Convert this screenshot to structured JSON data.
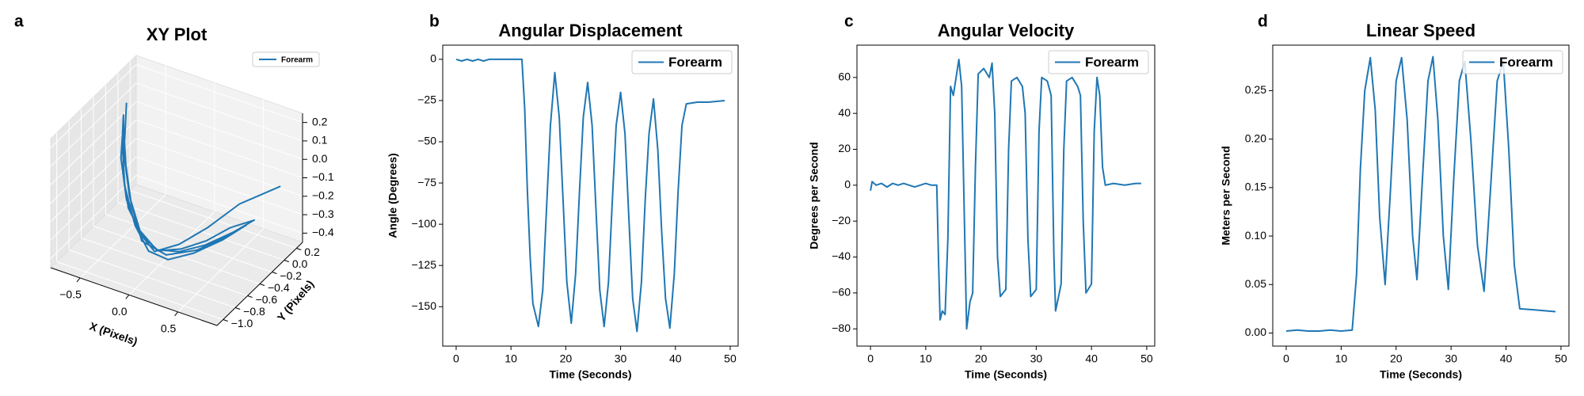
{
  "chart_data": [
    {
      "type": "line3d",
      "panel_label": "a",
      "title": "XY Plot",
      "xlabel": "X (Pixels)",
      "ylabel": "Y (Pixels)",
      "legend": "upper right",
      "xlim": [
        -0.8,
        0.9
      ],
      "ylim": [
        -1.1,
        0.3
      ],
      "zlim": [
        -0.45,
        0.25
      ],
      "xticks": [
        {
          "value": -0.5,
          "label": "−0.5"
        },
        {
          "value": 0,
          "label": "0.0"
        },
        {
          "value": 0.5,
          "label": "0.5"
        }
      ],
      "yticks": [
        {
          "value": 0.2,
          "label": "0.2"
        },
        {
          "value": 0,
          "label": "0.0"
        },
        {
          "value": -0.2,
          "label": "−0.2"
        },
        {
          "value": -0.4,
          "label": "−0.4"
        },
        {
          "value": -0.6,
          "label": "−0.6"
        },
        {
          "value": -0.8,
          "label": "−0.8"
        },
        {
          "value": -1.0,
          "label": "−1.0"
        }
      ],
      "zticks": [
        {
          "value": 0.2,
          "label": "0.2"
        },
        {
          "value": 0.1,
          "label": "0.1"
        },
        {
          "value": 0,
          "label": "0.0"
        },
        {
          "value": -0.1,
          "label": "−0.1"
        },
        {
          "value": -0.2,
          "label": "−0.2"
        },
        {
          "value": -0.3,
          "label": "−0.3"
        },
        {
          "value": -0.4,
          "label": "−0.4"
        }
      ],
      "series": [
        {
          "name": "Forearm",
          "color": "#1f77b4",
          "x": [
            -0.65,
            -0.6,
            -0.5,
            -0.35,
            -0.15,
            0.05,
            0.25,
            0.45,
            0.6,
            0.75,
            0.6,
            0.4,
            0.2,
            0.0,
            -0.2,
            -0.4,
            -0.55,
            -0.65,
            -0.6,
            -0.45,
            -0.25,
            -0.05,
            0.15,
            0.35,
            0.55,
            0.7,
            0.55,
            0.35,
            0.1,
            -0.15,
            -0.35,
            -0.5,
            -0.62,
            -0.55,
            -0.4,
            -0.2,
            0.0,
            0.2,
            0.4,
            0.6,
            0.8
          ],
          "y": [
            -0.1,
            -0.2,
            -0.4,
            -0.55,
            -0.65,
            -0.7,
            -0.65,
            -0.55,
            -0.4,
            -0.25,
            -0.35,
            -0.5,
            -0.6,
            -0.65,
            -0.6,
            -0.45,
            -0.3,
            -0.15,
            -0.25,
            -0.45,
            -0.6,
            -0.7,
            -0.7,
            -0.6,
            -0.45,
            -0.3,
            -0.4,
            -0.55,
            -0.65,
            -0.65,
            -0.5,
            -0.35,
            -0.2,
            -0.35,
            -0.5,
            -0.62,
            -0.68,
            -0.6,
            -0.45,
            -0.25,
            0.1
          ],
          "z": [
            0.15,
            0.05,
            -0.1,
            -0.22,
            -0.3,
            -0.33,
            -0.3,
            -0.25,
            -0.2,
            -0.18,
            -0.24,
            -0.3,
            -0.34,
            -0.35,
            -0.3,
            -0.2,
            -0.05,
            0.1,
            0.0,
            -0.15,
            -0.28,
            -0.35,
            -0.36,
            -0.32,
            -0.26,
            -0.2,
            -0.26,
            -0.32,
            -0.36,
            -0.33,
            -0.22,
            -0.08,
            0.08,
            -0.05,
            -0.2,
            -0.3,
            -0.35,
            -0.3,
            -0.22,
            -0.12,
            -0.1
          ]
        }
      ]
    },
    {
      "type": "line",
      "panel_label": "b",
      "title": "Angular Displacement",
      "xlabel": "Time (Seconds)",
      "ylabel": "Angle (Degrees)",
      "legend": "upper right",
      "xlim": [
        -2.45,
        51.45
      ],
      "ylim": [
        -173.9,
        8.6
      ],
      "xticks": [
        0,
        10,
        20,
        30,
        40,
        50
      ],
      "yticks": [
        0,
        {
          "value": -25,
          "label": "−25"
        },
        {
          "value": -50,
          "label": "−50"
        },
        {
          "value": -75,
          "label": "−75"
        },
        {
          "value": -100,
          "label": "−100"
        },
        {
          "value": -125,
          "label": "−125"
        },
        {
          "value": -150,
          "label": "−150"
        }
      ],
      "x": [
        0,
        1,
        2,
        3,
        4,
        5,
        6,
        7,
        8,
        9,
        10,
        11,
        12,
        12.5,
        13,
        13.5,
        14,
        15,
        15.8,
        16.5,
        17.2,
        18,
        18.8,
        19.5,
        20.2,
        21,
        21.8,
        22.5,
        23.2,
        24,
        24.8,
        25.5,
        26.2,
        27,
        27.8,
        28.5,
        29.2,
        30,
        30.8,
        31.5,
        32.2,
        33,
        33.8,
        34.5,
        35.2,
        36,
        36.8,
        37.5,
        38.2,
        39,
        39.8,
        40.5,
        41.2,
        42,
        44,
        46,
        49
      ],
      "series": [
        {
          "name": "Forearm",
          "color": "#1f77b4",
          "values": [
            0,
            -1,
            0,
            -1,
            0,
            -1,
            0,
            0,
            0,
            0,
            0,
            0,
            0,
            -30,
            -80,
            -120,
            -148,
            -162,
            -140,
            -90,
            -40,
            -8,
            -35,
            -85,
            -135,
            -160,
            -130,
            -80,
            -35,
            -14,
            -40,
            -90,
            -140,
            -162,
            -135,
            -85,
            -40,
            -20,
            -45,
            -95,
            -145,
            -165,
            -135,
            -85,
            -45,
            -24,
            -55,
            -105,
            -145,
            -163,
            -130,
            -80,
            -40,
            -27,
            -26,
            -26,
            -25
          ]
        }
      ]
    },
    {
      "type": "line",
      "panel_label": "c",
      "title": "Angular Velocity",
      "xlabel": "Time (Seconds)",
      "ylabel": "Degrees per Second",
      "legend": "upper right",
      "xlim": [
        -2.45,
        51.45
      ],
      "ylim": [
        -89.6,
        78
      ],
      "xticks": [
        0,
        10,
        20,
        30,
        40,
        50
      ],
      "yticks": [
        {
          "value": -80,
          "label": "−80"
        },
        {
          "value": -60,
          "label": "−60"
        },
        {
          "value": -40,
          "label": "−40"
        },
        {
          "value": -20,
          "label": "−20"
        },
        0,
        20,
        40,
        60
      ],
      "x": [
        0,
        0.3,
        1,
        2,
        3,
        4,
        5,
        6,
        7,
        8,
        9,
        10,
        11,
        12,
        12.3,
        12.6,
        13,
        13.5,
        14,
        14.5,
        15,
        15.5,
        16,
        16.5,
        17,
        17.4,
        18,
        18.5,
        19,
        19.5,
        20.5,
        21.5,
        22,
        22.5,
        23,
        23.5,
        24.5,
        25,
        25.5,
        26.5,
        27.5,
        28,
        28.5,
        29,
        30,
        30.5,
        31,
        32,
        32.7,
        33.2,
        33.5,
        34.5,
        35,
        35.5,
        36.5,
        37.5,
        38,
        38.5,
        39,
        40,
        40.5,
        41,
        41.5,
        42,
        42.5,
        44,
        46,
        48,
        49
      ],
      "series": [
        {
          "name": "Forearm",
          "color": "#1f77b4",
          "values": [
            -3,
            2,
            0,
            1,
            -1,
            1,
            0,
            1,
            0,
            -1,
            0,
            1,
            0,
            0,
            -40,
            -75,
            -70,
            -72,
            -30,
            55,
            50,
            60,
            70,
            55,
            -20,
            -80,
            -65,
            -60,
            10,
            62,
            65,
            60,
            68,
            40,
            -40,
            -62,
            -58,
            20,
            58,
            60,
            55,
            40,
            -30,
            -62,
            -58,
            30,
            60,
            58,
            50,
            -40,
            -70,
            -55,
            20,
            58,
            60,
            55,
            50,
            -20,
            -60,
            -55,
            30,
            60,
            50,
            10,
            0,
            1,
            0,
            1,
            1
          ]
        }
      ]
    },
    {
      "type": "line",
      "panel_label": "d",
      "title": "Linear Speed",
      "xlabel": "Time (Seconds)",
      "ylabel": "Meters per Second",
      "legend": "upper right",
      "xlim": [
        -2.45,
        51.45
      ],
      "ylim": [
        -0.0135,
        0.2969
      ],
      "xticks": [
        0,
        10,
        20,
        30,
        40,
        50
      ],
      "yticks": [
        {
          "value": 0,
          "label": "0.00"
        },
        {
          "value": 0.05,
          "label": "0.05"
        },
        {
          "value": 0.1,
          "label": "0.10"
        },
        {
          "value": 0.15,
          "label": "0.15"
        },
        {
          "value": 0.2,
          "label": "0.20"
        },
        {
          "value": 0.25,
          "label": "0.25"
        }
      ],
      "x": [
        0,
        2,
        4,
        6,
        8,
        10,
        12,
        12.8,
        13.5,
        14.3,
        15.3,
        16.2,
        17,
        18,
        19,
        20,
        21,
        22,
        23,
        23.8,
        24.8,
        25.8,
        26.7,
        27.6,
        28.6,
        29.5,
        30.5,
        31.5,
        32.5,
        33.6,
        34.8,
        36,
        37.2,
        38.4,
        39.5,
        40.5,
        41.5,
        42.5,
        45,
        49
      ],
      "series": [
        {
          "name": "Forearm",
          "color": "#1f77b4",
          "values": [
            0.002,
            0.003,
            0.002,
            0.002,
            0.003,
            0.002,
            0.003,
            0.06,
            0.17,
            0.25,
            0.284,
            0.23,
            0.12,
            0.05,
            0.15,
            0.26,
            0.284,
            0.22,
            0.1,
            0.055,
            0.16,
            0.26,
            0.285,
            0.22,
            0.1,
            0.045,
            0.16,
            0.26,
            0.28,
            0.2,
            0.09,
            0.043,
            0.15,
            0.26,
            0.28,
            0.19,
            0.07,
            0.025,
            0.024,
            0.022
          ]
        }
      ]
    }
  ]
}
